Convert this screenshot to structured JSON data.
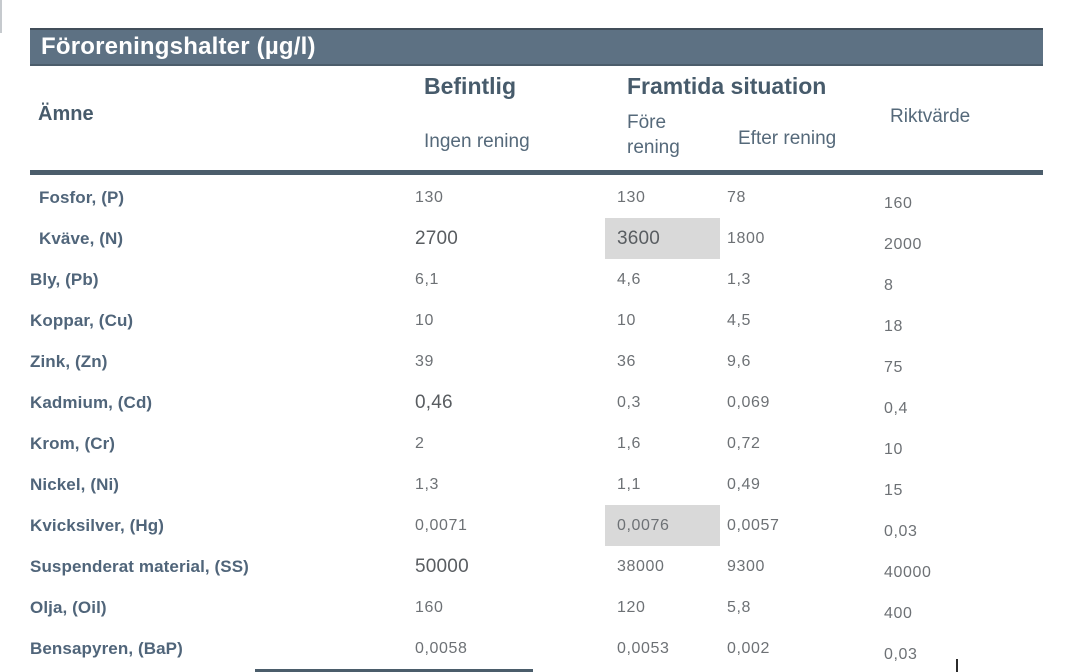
{
  "title": "Föroreningshalter (µg/l)",
  "table": {
    "headers": {
      "amne": "Ämne",
      "befintlig": "Befintlig",
      "framtida": "Framtida situation",
      "ingen_rening": "Ingen rening",
      "fore_rening": "Före rening",
      "efter_rening": "Efter rening",
      "riktvarde": "Riktvärde"
    },
    "rows": [
      {
        "label": "Fosfor, (P)",
        "indent": true,
        "ingen": "130",
        "fore": "130",
        "efter": "78",
        "rikt": "160"
      },
      {
        "label": "Kväve, (N)",
        "indent": true,
        "ingen": "2700",
        "fore": "3600",
        "efter": "1800",
        "rikt": "2000",
        "ingen_large": true,
        "fore_large": true,
        "fore_highlight": true
      },
      {
        "label": "Bly, (Pb)",
        "indent": false,
        "ingen": "6,1",
        "fore": "4,6",
        "efter": "1,3",
        "rikt": "8"
      },
      {
        "label": "Koppar, (Cu)",
        "indent": false,
        "ingen": "10",
        "fore": "10",
        "efter": "4,5",
        "rikt": "18"
      },
      {
        "label": "Zink, (Zn)",
        "indent": false,
        "ingen": "39",
        "fore": "36",
        "efter": "9,6",
        "rikt": "75"
      },
      {
        "label": "Kadmium, (Cd)",
        "indent": false,
        "ingen": "0,46",
        "fore": "0,3",
        "efter": "0,069",
        "rikt": "0,4",
        "ingen_large": true
      },
      {
        "label": "Krom, (Cr)",
        "indent": false,
        "ingen": "2",
        "fore": "1,6",
        "efter": "0,72",
        "rikt": "10"
      },
      {
        "label": "Nickel, (Ni)",
        "indent": false,
        "ingen": "1,3",
        "fore": "1,1",
        "efter": "0,49",
        "rikt": "15"
      },
      {
        "label": "Kvicksilver, (Hg)",
        "indent": false,
        "ingen": "0,0071",
        "fore": "0,0076",
        "efter": "0,0057",
        "rikt": "0,03",
        "fore_highlight": true
      },
      {
        "label": "Suspenderat material, (SS)",
        "indent": false,
        "ingen": "50000",
        "fore": "38000",
        "efter": "9300",
        "rikt": "40000",
        "ingen_large": true
      },
      {
        "label": "Olja, (Oil)",
        "indent": false,
        "ingen": "160",
        "fore": "120",
        "efter": "5,8",
        "rikt": "400"
      },
      {
        "label": "Bensapyren, (BaP)",
        "indent": false,
        "ingen": "0,0058",
        "fore": "0,0053",
        "efter": "0,002",
        "rikt": "0,03"
      }
    ]
  },
  "colors": {
    "banner_bg": "#5d7183",
    "banner_text": "#ffffff",
    "header_text": "#475b6b",
    "subheader_text": "#55697a",
    "label_text": "#50657a",
    "value_text": "#6d7175",
    "rule": "#4b5d6b",
    "highlight_bg": "#d9d9d9"
  }
}
